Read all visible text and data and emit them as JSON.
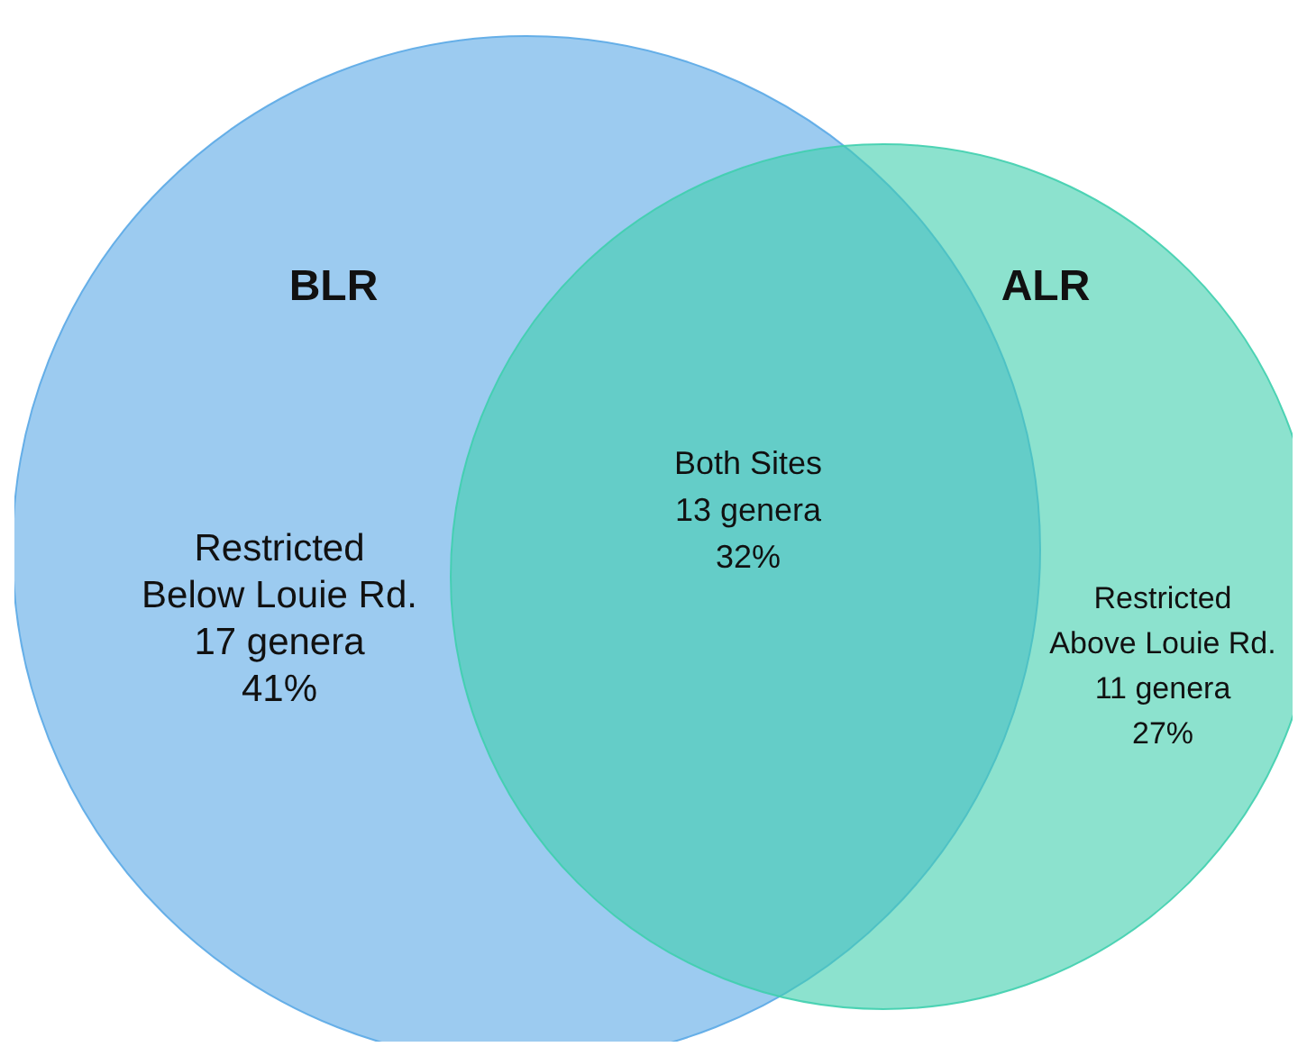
{
  "chart_data": {
    "type": "other",
    "categories": [
      "Restricted Below Louie Rd.",
      "Both Sites",
      "Restricted Above Louie Rd."
    ],
    "series": [
      {
        "values": [
          17,
          13,
          11
        ],
        "value_labels": [
          "17 genera",
          "13 genera",
          "11 genera"
        ]
      },
      {
        "values": [
          41,
          32,
          27
        ],
        "value_labels": [
          "41%",
          "32%",
          "27%"
        ]
      }
    ],
    "colors": [
      "#5aa9e6",
      "#3fcfae"
    ],
    "annotations": [
      "BLR",
      "ALR"
    ]
  }
}
